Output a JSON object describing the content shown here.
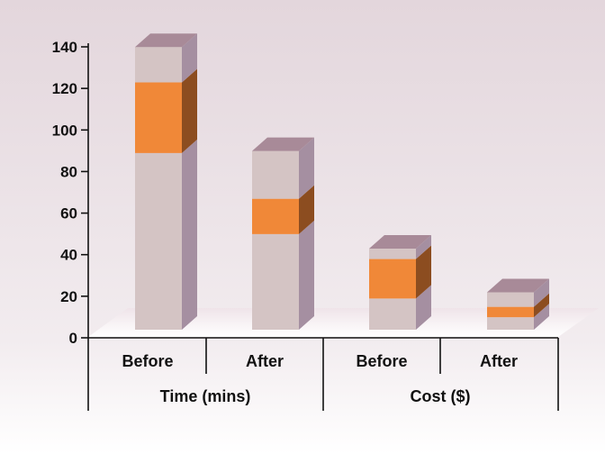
{
  "chart_data": {
    "type": "bar",
    "stacked": true,
    "style": "3d",
    "ylim": [
      0,
      140
    ],
    "yticks": [
      0,
      20,
      40,
      60,
      80,
      100,
      120,
      140
    ],
    "groups": [
      {
        "label": "Time (mins)",
        "categories": [
          "Before",
          "After"
        ]
      },
      {
        "label": "Cost ($)",
        "categories": [
          "Before",
          "After"
        ]
      }
    ],
    "bars": [
      {
        "group": "Time (mins)",
        "category": "Before",
        "segments": [
          85,
          34,
          17
        ]
      },
      {
        "group": "Time (mins)",
        "category": "After",
        "segments": [
          46,
          17,
          23
        ]
      },
      {
        "group": "Cost ($)",
        "category": "Before",
        "segments": [
          15,
          19,
          5
        ]
      },
      {
        "group": "Cost ($)",
        "category": "After",
        "segments": [
          6,
          5,
          7
        ]
      }
    ],
    "segment_colors": [
      {
        "front": "#d4c4c4",
        "side": "#a58fa1",
        "top": "#a88a98"
      },
      {
        "front": "#f08838",
        "side": "#8c4d20",
        "top": "#f08838"
      },
      {
        "front": "#d4c4c4",
        "side": "#a58fa1",
        "top": "#a88a98"
      }
    ],
    "background_gradient": [
      "#e3d6dc",
      "#ffffff"
    ]
  }
}
